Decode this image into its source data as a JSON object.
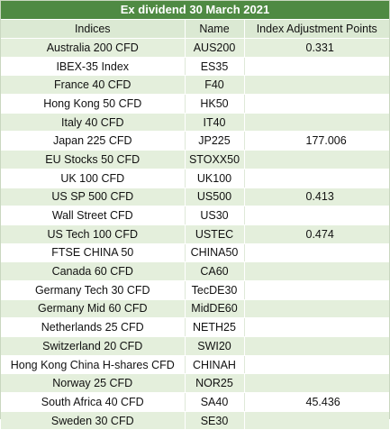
{
  "title": "Ex dividend 30 March 2021",
  "headers": {
    "indices": "Indices",
    "name": "Name",
    "points": "Index Adjustment Points"
  },
  "rows": [
    {
      "index": "Australia 200 CFD",
      "name": "AUS200",
      "points": "0.331"
    },
    {
      "index": "IBEX-35 Index",
      "name": "ES35",
      "points": ""
    },
    {
      "index": "France 40 CFD",
      "name": "F40",
      "points": ""
    },
    {
      "index": "Hong Kong 50 CFD",
      "name": "HK50",
      "points": ""
    },
    {
      "index": "Italy 40 CFD",
      "name": "IT40",
      "points": ""
    },
    {
      "index": "Japan 225 CFD",
      "name": "JP225",
      "points": "177.006"
    },
    {
      "index": "EU Stocks 50 CFD",
      "name": "STOXX50",
      "points": ""
    },
    {
      "index": "UK 100 CFD",
      "name": "UK100",
      "points": ""
    },
    {
      "index": "US SP 500 CFD",
      "name": "US500",
      "points": "0.413"
    },
    {
      "index": "Wall Street CFD",
      "name": "US30",
      "points": ""
    },
    {
      "index": "US Tech 100 CFD",
      "name": "USTEC",
      "points": "0.474"
    },
    {
      "index": "FTSE CHINA 50",
      "name": "CHINA50",
      "points": ""
    },
    {
      "index": "Canada 60 CFD",
      "name": "CA60",
      "points": ""
    },
    {
      "index": "Germany Tech 30 CFD",
      "name": "TecDE30",
      "points": ""
    },
    {
      "index": "Germany Mid 60 CFD",
      "name": "MidDE60",
      "points": ""
    },
    {
      "index": "Netherlands 25 CFD",
      "name": "NETH25",
      "points": ""
    },
    {
      "index": "Switzerland 20 CFD",
      "name": "SWI20",
      "points": ""
    },
    {
      "index": "Hong Kong China H-shares CFD",
      "name": "CHINAH",
      "points": ""
    },
    {
      "index": "Norway 25 CFD",
      "name": "NOR25",
      "points": ""
    },
    {
      "index": "South Africa 40 CFD",
      "name": "SA40",
      "points": "45.436"
    },
    {
      "index": "Sweden 30 CFD",
      "name": "SE30",
      "points": ""
    }
  ],
  "colors": {
    "title_bg": "#4f8a43",
    "band": "#e4efdc",
    "header_bg": "#dbe9d3"
  }
}
